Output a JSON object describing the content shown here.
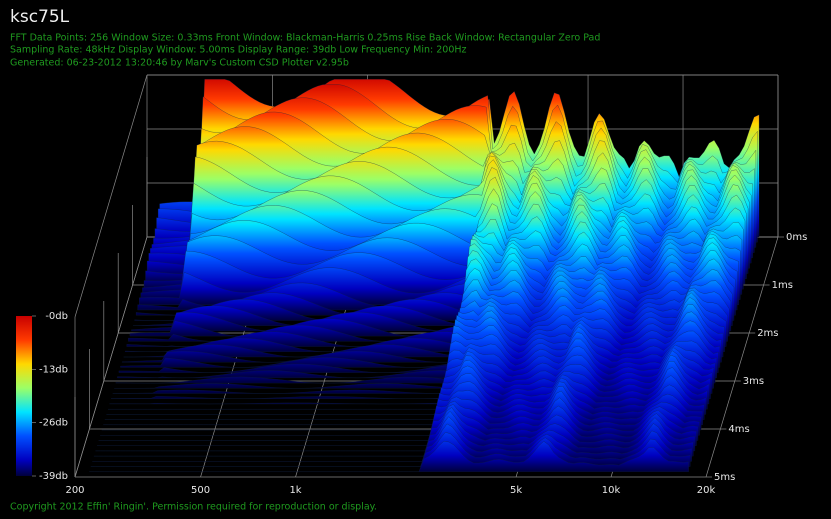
{
  "chart_data": {
    "type": "waterfall",
    "title": "ksc75L",
    "info_lines": [
      "FFT Data Points: 256  Window Size: 0.33ms   Front Window: Blackman-Harris 0.25ms Rise   Back Window: Rectangular Zero Pad",
      "Sampling Rate: 48kHz  Display Window: 5.00ms   Display Range: 39db  Low Frequency Min: 200Hz",
      "Generated: 06-23-2012 13:20:46 by Marv's Custom CSD Plotter v2.95b"
    ],
    "xscale": "log",
    "xlim": [
      200,
      20000
    ],
    "xticks": [
      200,
      500,
      {
        "value": 1000,
        "label": "1k"
      },
      {
        "value": 5000,
        "label": "5k"
      },
      {
        "value": 10000,
        "label": "10k"
      },
      {
        "value": 20000,
        "label": "20k"
      }
    ],
    "zlim": [
      0,
      5
    ],
    "zticks": [
      {
        "value": 0,
        "label": "0ms"
      },
      {
        "value": 1,
        "label": "1ms"
      },
      {
        "value": 2,
        "label": "2ms"
      },
      {
        "value": 3,
        "label": "3ms"
      },
      {
        "value": 4,
        "label": "4ms"
      },
      {
        "value": 5,
        "label": "5ms"
      }
    ],
    "colorbar": {
      "lim": [
        -39,
        0
      ],
      "ticks": [
        {
          "value": 0,
          "label": "-0db"
        },
        {
          "value": -13,
          "label": "-13db"
        },
        {
          "value": -26,
          "label": "-26db"
        },
        {
          "value": -39,
          "label": "-39db"
        }
      ]
    },
    "copyright": "Copyright 2012 Effin' Ringin'. Permission required for reproduction or display."
  }
}
